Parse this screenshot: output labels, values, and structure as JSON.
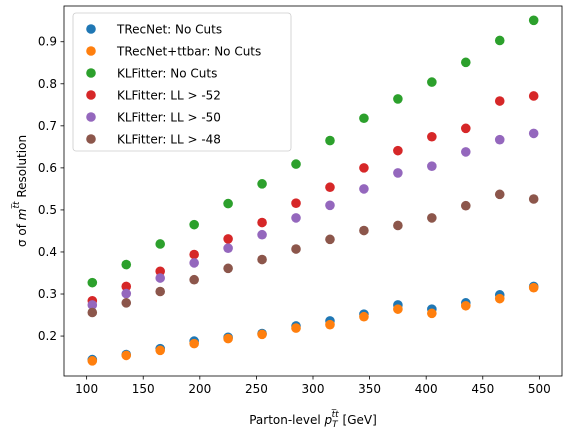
{
  "chart_data": {
    "type": "scatter",
    "xlabel": "Parton-level p_T^{t̅t} [GeV]",
    "ylabel": "σ of m^{t̅t} Resolution",
    "xlabel_parts": {
      "pre": "Parton-level ",
      "var": "p",
      "sub": "T",
      "sup": "t̅t",
      "post": " [GeV]"
    },
    "ylabel_parts": {
      "pre": "σ of ",
      "var": "m",
      "sup": "t̅t",
      "post": " Resolution"
    },
    "xlim": [
      80,
      520
    ],
    "ylim": [
      0.105,
      0.985
    ],
    "xticks": [
      100,
      150,
      200,
      250,
      300,
      350,
      400,
      450,
      500
    ],
    "xtick_labels": [
      "100",
      "150",
      "200",
      "250",
      "300",
      "350",
      "400",
      "450",
      "500"
    ],
    "yticks": [
      0.2,
      0.3,
      0.4,
      0.5,
      0.6,
      0.7,
      0.8,
      0.9
    ],
    "ytick_labels": [
      "0.2",
      "0.3",
      "0.4",
      "0.5",
      "0.6",
      "0.7",
      "0.8",
      "0.9"
    ],
    "grid": false,
    "legend_position": "top-left",
    "x": [
      105,
      135,
      165,
      195,
      225,
      255,
      285,
      315,
      345,
      375,
      405,
      435,
      465,
      495
    ],
    "series": [
      {
        "name": "TRecNet: No Cuts",
        "color": "#1f77b4",
        "values": [
          0.144,
          0.156,
          0.17,
          0.188,
          0.197,
          0.206,
          0.224,
          0.236,
          0.252,
          0.274,
          0.264,
          0.279,
          0.298,
          0.318
        ]
      },
      {
        "name": "TRecNet+ttbar: No Cuts",
        "color": "#ff7f0e",
        "values": [
          0.141,
          0.154,
          0.166,
          0.182,
          0.194,
          0.204,
          0.219,
          0.227,
          0.246,
          0.264,
          0.254,
          0.272,
          0.289,
          0.315
        ]
      },
      {
        "name": "KLFitter: No Cuts",
        "color": "#2ca02c",
        "values": [
          0.327,
          0.37,
          0.419,
          0.465,
          0.515,
          0.562,
          0.609,
          0.665,
          0.718,
          0.764,
          0.804,
          0.851,
          0.903,
          0.951
        ]
      },
      {
        "name": "KLFitter: LL > -52",
        "color": "#d62728",
        "values": [
          0.284,
          0.318,
          0.354,
          0.394,
          0.431,
          0.47,
          0.516,
          0.554,
          0.6,
          0.641,
          0.674,
          0.694,
          0.759,
          0.771
        ]
      },
      {
        "name": "KLFitter: LL > -50",
        "color": "#9467bd",
        "values": [
          0.274,
          0.301,
          0.338,
          0.374,
          0.409,
          0.441,
          0.481,
          0.511,
          0.55,
          0.588,
          0.604,
          0.638,
          0.667,
          0.682
        ]
      },
      {
        "name": "KLFitter: LL > -48",
        "color": "#8c564b",
        "values": [
          0.256,
          0.279,
          0.306,
          0.334,
          0.361,
          0.382,
          0.407,
          0.43,
          0.451,
          0.463,
          0.481,
          0.51,
          0.537,
          0.526
        ]
      }
    ]
  }
}
